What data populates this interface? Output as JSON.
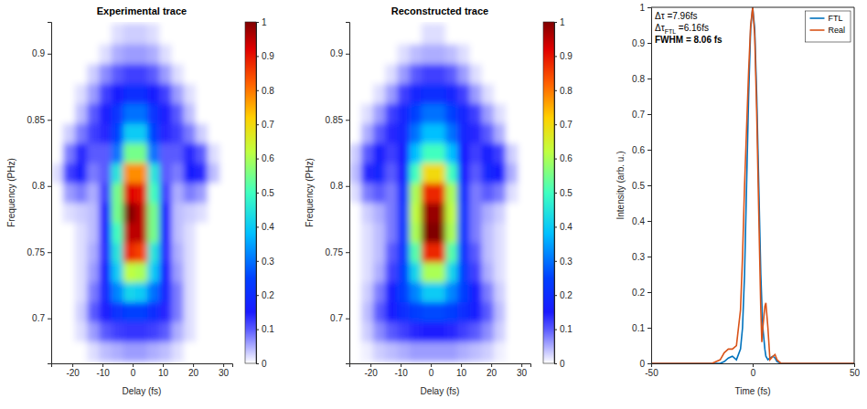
{
  "chart_data": [
    {
      "type": "heatmap",
      "title": "Experimental trace",
      "x_label": "Delay (fs)",
      "y_label": "Frequency (PHz)",
      "xlim": [
        -27,
        33
      ],
      "xticks": [
        -20,
        -10,
        0,
        10,
        20,
        30
      ],
      "ylim": [
        0.666,
        0.924
      ],
      "yticks": [
        0.7,
        0.75,
        0.8,
        0.85,
        0.9
      ],
      "x": [
        -25,
        -21,
        -17,
        -13,
        -9,
        -5,
        -1,
        3,
        7,
        11,
        15,
        19,
        23,
        27,
        31
      ],
      "y": [
        0.675,
        0.69,
        0.705,
        0.72,
        0.735,
        0.75,
        0.765,
        0.78,
        0.795,
        0.81,
        0.825,
        0.84,
        0.855,
        0.87,
        0.885,
        0.9,
        0.915
      ],
      "z": [
        [
          0,
          0,
          0,
          0.02,
          0.04,
          0.05,
          0.06,
          0.06,
          0.05,
          0.04,
          0.02,
          0,
          0,
          0,
          0
        ],
        [
          0,
          0,
          0.02,
          0.06,
          0.1,
          0.12,
          0.13,
          0.13,
          0.12,
          0.1,
          0.05,
          0.02,
          0,
          0,
          0
        ],
        [
          0,
          0,
          0.03,
          0.1,
          0.15,
          0.22,
          0.25,
          0.25,
          0.2,
          0.14,
          0.08,
          0.02,
          0,
          0,
          0
        ],
        [
          0,
          0,
          0.02,
          0.08,
          0.18,
          0.32,
          0.42,
          0.4,
          0.3,
          0.18,
          0.08,
          0.02,
          0,
          0,
          0
        ],
        [
          0,
          0,
          0.02,
          0.06,
          0.16,
          0.4,
          0.62,
          0.6,
          0.4,
          0.16,
          0.06,
          0.02,
          0,
          0,
          0
        ],
        [
          0,
          0,
          0.02,
          0.05,
          0.14,
          0.45,
          0.88,
          0.85,
          0.45,
          0.14,
          0.05,
          0.02,
          0,
          0,
          0
        ],
        [
          0,
          0,
          0.02,
          0.04,
          0.15,
          0.5,
          0.95,
          0.95,
          0.55,
          0.15,
          0.04,
          0.02,
          0,
          0,
          0
        ],
        [
          0,
          0.02,
          0.03,
          0.04,
          0.15,
          0.55,
          1.0,
          0.95,
          0.55,
          0.15,
          0.04,
          0.03,
          0.02,
          0,
          0
        ],
        [
          0,
          0.06,
          0.08,
          0.05,
          0.12,
          0.55,
          0.92,
          0.9,
          0.5,
          0.12,
          0.05,
          0.08,
          0.06,
          0,
          0
        ],
        [
          0.02,
          0.12,
          0.16,
          0.08,
          0.1,
          0.45,
          0.78,
          0.78,
          0.45,
          0.1,
          0.08,
          0.16,
          0.14,
          0.04,
          0
        ],
        [
          0,
          0.08,
          0.14,
          0.1,
          0.1,
          0.3,
          0.55,
          0.55,
          0.3,
          0.1,
          0.1,
          0.14,
          0.1,
          0.02,
          0
        ],
        [
          0,
          0.03,
          0.08,
          0.12,
          0.14,
          0.25,
          0.4,
          0.4,
          0.25,
          0.14,
          0.12,
          0.08,
          0.03,
          0,
          0
        ],
        [
          0,
          0,
          0.04,
          0.1,
          0.15,
          0.22,
          0.3,
          0.3,
          0.22,
          0.15,
          0.1,
          0.04,
          0,
          0,
          0
        ],
        [
          0,
          0,
          0.02,
          0.06,
          0.12,
          0.16,
          0.2,
          0.2,
          0.16,
          0.12,
          0.06,
          0.02,
          0,
          0,
          0
        ],
        [
          0,
          0,
          0,
          0.03,
          0.07,
          0.1,
          0.12,
          0.12,
          0.1,
          0.06,
          0.02,
          0,
          0,
          0,
          0
        ],
        [
          0,
          0,
          0,
          0,
          0.02,
          0.05,
          0.06,
          0.06,
          0.05,
          0.02,
          0,
          0,
          0,
          0,
          0
        ],
        [
          0,
          0,
          0,
          0,
          0,
          0.02,
          0.03,
          0.03,
          0.02,
          0,
          0,
          0,
          0,
          0,
          0
        ]
      ],
      "colorbar": {
        "range": [
          0,
          1
        ],
        "ticks": [
          0,
          0.1,
          0.2,
          0.3,
          0.4,
          0.5,
          0.6,
          0.7,
          0.8,
          0.9,
          1
        ]
      }
    },
    {
      "type": "heatmap",
      "title": "Reconstructed trace",
      "x_label": "Delay (fs)",
      "y_label": "Frequency (PHz)",
      "xlim": [
        -27,
        33
      ],
      "xticks": [
        -20,
        -10,
        0,
        10,
        20,
        30
      ],
      "ylim": [
        0.666,
        0.924
      ],
      "yticks": [
        0.7,
        0.75,
        0.8,
        0.85,
        0.9
      ],
      "x": [
        -25,
        -21,
        -17,
        -13,
        -9,
        -5,
        -1,
        3,
        7,
        11,
        15,
        19,
        23,
        27,
        31
      ],
      "y": [
        0.675,
        0.69,
        0.705,
        0.72,
        0.735,
        0.75,
        0.765,
        0.78,
        0.795,
        0.81,
        0.825,
        0.84,
        0.855,
        0.87,
        0.885,
        0.9,
        0.915
      ],
      "z": [
        [
          0,
          0.01,
          0.03,
          0.04,
          0.05,
          0.06,
          0.06,
          0.06,
          0.06,
          0.05,
          0.04,
          0.03,
          0.01,
          0,
          0
        ],
        [
          0,
          0.03,
          0.07,
          0.1,
          0.12,
          0.14,
          0.15,
          0.15,
          0.14,
          0.12,
          0.1,
          0.07,
          0.03,
          0,
          0
        ],
        [
          0,
          0.04,
          0.1,
          0.16,
          0.2,
          0.24,
          0.26,
          0.26,
          0.24,
          0.2,
          0.16,
          0.1,
          0.04,
          0,
          0
        ],
        [
          0,
          0.03,
          0.08,
          0.16,
          0.24,
          0.32,
          0.4,
          0.4,
          0.32,
          0.24,
          0.16,
          0.08,
          0.03,
          0,
          0
        ],
        [
          0,
          0.02,
          0.05,
          0.12,
          0.24,
          0.42,
          0.6,
          0.6,
          0.42,
          0.24,
          0.12,
          0.05,
          0.02,
          0,
          0
        ],
        [
          0,
          0.02,
          0.04,
          0.1,
          0.22,
          0.52,
          0.88,
          0.88,
          0.52,
          0.22,
          0.1,
          0.04,
          0.02,
          0,
          0
        ],
        [
          0,
          0.02,
          0.04,
          0.08,
          0.22,
          0.6,
          1.0,
          1.0,
          0.6,
          0.22,
          0.08,
          0.04,
          0.02,
          0,
          0
        ],
        [
          0,
          0.03,
          0.05,
          0.08,
          0.22,
          0.62,
          0.98,
          0.98,
          0.62,
          0.22,
          0.08,
          0.05,
          0.03,
          0,
          0
        ],
        [
          0.02,
          0.08,
          0.1,
          0.08,
          0.2,
          0.6,
          0.88,
          0.88,
          0.6,
          0.2,
          0.08,
          0.1,
          0.08,
          0.02,
          0
        ],
        [
          0.04,
          0.14,
          0.18,
          0.1,
          0.16,
          0.5,
          0.7,
          0.7,
          0.5,
          0.16,
          0.1,
          0.18,
          0.16,
          0.05,
          0
        ],
        [
          0.03,
          0.1,
          0.16,
          0.12,
          0.16,
          0.38,
          0.5,
          0.5,
          0.38,
          0.16,
          0.12,
          0.16,
          0.12,
          0.03,
          0
        ],
        [
          0,
          0.05,
          0.1,
          0.14,
          0.18,
          0.3,
          0.38,
          0.38,
          0.3,
          0.18,
          0.14,
          0.1,
          0.05,
          0,
          0
        ],
        [
          0,
          0.02,
          0.06,
          0.12,
          0.18,
          0.25,
          0.3,
          0.3,
          0.25,
          0.18,
          0.12,
          0.06,
          0.02,
          0,
          0
        ],
        [
          0,
          0,
          0.02,
          0.06,
          0.12,
          0.18,
          0.2,
          0.2,
          0.18,
          0.12,
          0.06,
          0.02,
          0,
          0,
          0
        ],
        [
          0,
          0,
          0,
          0.02,
          0.06,
          0.1,
          0.12,
          0.12,
          0.1,
          0.06,
          0.02,
          0,
          0,
          0,
          0
        ],
        [
          0,
          0,
          0,
          0,
          0.02,
          0.04,
          0.05,
          0.05,
          0.04,
          0.02,
          0,
          0,
          0,
          0,
          0
        ],
        [
          0,
          0,
          0,
          0,
          0,
          0,
          0.02,
          0.02,
          0,
          0,
          0,
          0,
          0,
          0,
          0
        ]
      ],
      "colorbar": {
        "range": [
          0,
          1
        ],
        "ticks": [
          0,
          0.1,
          0.2,
          0.3,
          0.4,
          0.5,
          0.6,
          0.7,
          0.8,
          0.9,
          1
        ]
      }
    },
    {
      "type": "line",
      "x_label": "Time (fs)",
      "y_label": "Intensity (arb. u.)",
      "xlim": [
        -50,
        50
      ],
      "xticks": [
        -50,
        0,
        50
      ],
      "ylim": [
        0,
        1
      ],
      "yticks": [
        0,
        0.1,
        0.2,
        0.3,
        0.4,
        0.5,
        0.6,
        0.7,
        0.8,
        0.9,
        1
      ],
      "x": [
        -50,
        -30,
        -20,
        -16,
        -14,
        -12,
        -10,
        -8,
        -6,
        -5,
        -4,
        -3,
        -2,
        -1,
        0,
        1,
        2,
        3,
        4,
        4.5,
        5,
        6,
        6.5,
        7.5,
        8.5,
        10,
        11,
        12,
        14,
        20,
        30,
        50
      ],
      "series": [
        {
          "name": "FTL",
          "color": "#0072bd",
          "values": [
            0,
            0,
            0,
            0,
            0.005,
            0.015,
            0.02,
            0.01,
            0.04,
            0.1,
            0.25,
            0.5,
            0.75,
            0.94,
            1,
            0.94,
            0.75,
            0.5,
            0.25,
            0.17,
            0.1,
            0.04,
            0.02,
            0.01,
            0.015,
            0.02,
            0.015,
            0.005,
            0,
            0,
            0,
            0
          ]
        },
        {
          "name": "Real",
          "color": "#d95319",
          "values": [
            0,
            0,
            0,
            0.01,
            0.03,
            0.04,
            0.04,
            0.05,
            0.15,
            0.3,
            0.5,
            0.66,
            0.82,
            0.95,
            1,
            0.92,
            0.7,
            0.42,
            0.15,
            0.06,
            0.1,
            0.16,
            0.17,
            0.1,
            0.01,
            0.02,
            0.025,
            0.01,
            0,
            0,
            0,
            0
          ]
        }
      ],
      "legend": "northeast",
      "annotations": [
        {
          "text": "Δτ =7.96fs"
        },
        {
          "text": "Δτ",
          "subscript": "FTL",
          "suffix": " =6.16fs"
        },
        {
          "text": "FWHM = 8.06 fs"
        }
      ]
    }
  ]
}
